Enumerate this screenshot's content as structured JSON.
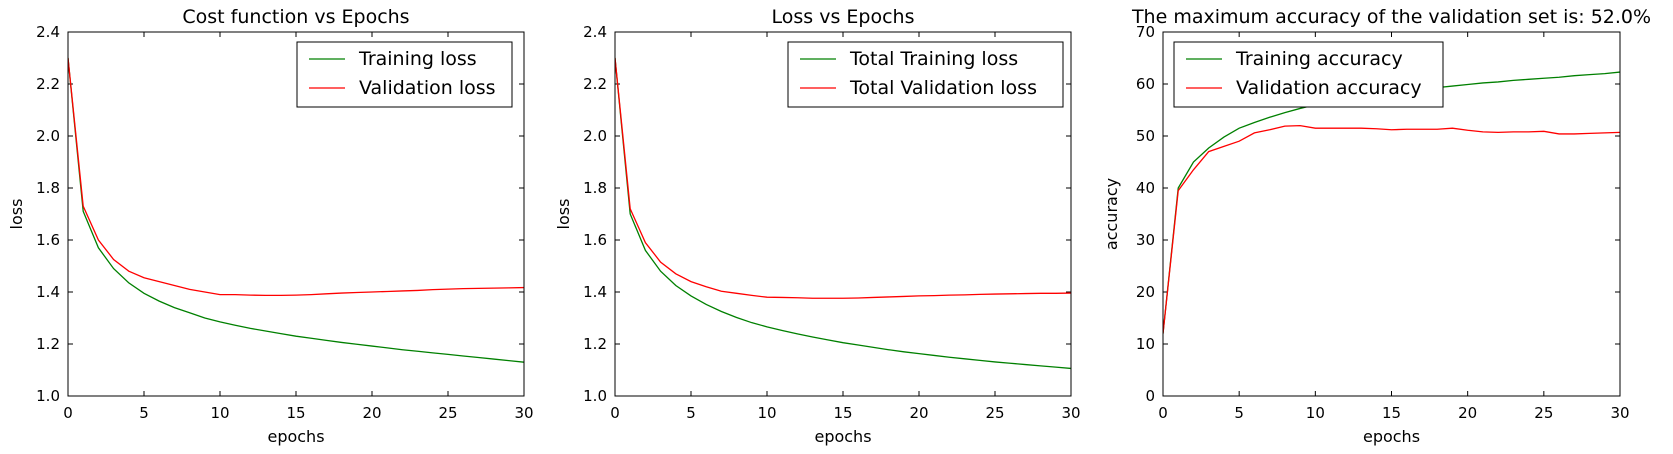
{
  "chart_data": [
    {
      "type": "line",
      "title": "Cost function vs Epochs",
      "xlabel": "epochs",
      "ylabel": "loss",
      "xlim": [
        0,
        30
      ],
      "ylim": [
        1.0,
        2.4
      ],
      "xticks": [
        "0",
        "5",
        "10",
        "15",
        "20",
        "25",
        "30"
      ],
      "yticks": [
        "1.0",
        "1.2",
        "1.4",
        "1.6",
        "1.8",
        "2.0",
        "2.2",
        "2.4"
      ],
      "legend_position": "top-right",
      "x": [
        0,
        1,
        2,
        3,
        4,
        5,
        6,
        7,
        8,
        9,
        10,
        11,
        12,
        13,
        14,
        15,
        16,
        17,
        18,
        19,
        20,
        21,
        22,
        23,
        24,
        25,
        26,
        27,
        28,
        29,
        30
      ],
      "series": [
        {
          "name": "Training loss",
          "color": "#008000",
          "values": [
            2.3,
            1.71,
            1.57,
            1.49,
            1.435,
            1.395,
            1.365,
            1.34,
            1.32,
            1.3,
            1.285,
            1.272,
            1.26,
            1.25,
            1.24,
            1.23,
            1.222,
            1.214,
            1.206,
            1.199,
            1.192,
            1.185,
            1.178,
            1.172,
            1.166,
            1.16,
            1.154,
            1.148,
            1.142,
            1.136,
            1.13
          ]
        },
        {
          "name": "Validation loss",
          "color": "#ff0000",
          "values": [
            2.3,
            1.73,
            1.6,
            1.525,
            1.48,
            1.455,
            1.44,
            1.425,
            1.41,
            1.4,
            1.39,
            1.39,
            1.388,
            1.387,
            1.387,
            1.388,
            1.39,
            1.393,
            1.396,
            1.398,
            1.4,
            1.402,
            1.404,
            1.406,
            1.409,
            1.411,
            1.413,
            1.414,
            1.415,
            1.416,
            1.417
          ]
        }
      ]
    },
    {
      "type": "line",
      "title": "Loss vs Epochs",
      "xlabel": "epochs",
      "ylabel": "loss",
      "xlim": [
        0,
        30
      ],
      "ylim": [
        1.0,
        2.4
      ],
      "xticks": [
        "0",
        "5",
        "10",
        "15",
        "20",
        "25",
        "30"
      ],
      "yticks": [
        "1.0",
        "1.2",
        "1.4",
        "1.6",
        "1.8",
        "2.0",
        "2.2",
        "2.4"
      ],
      "legend_position": "top-right",
      "x": [
        0,
        1,
        2,
        3,
        4,
        5,
        6,
        7,
        8,
        9,
        10,
        11,
        12,
        13,
        14,
        15,
        16,
        17,
        18,
        19,
        20,
        21,
        22,
        23,
        24,
        25,
        26,
        27,
        28,
        29,
        30
      ],
      "series": [
        {
          "name": "Total Training loss",
          "color": "#008000",
          "values": [
            2.3,
            1.7,
            1.56,
            1.48,
            1.425,
            1.385,
            1.352,
            1.325,
            1.302,
            1.282,
            1.266,
            1.252,
            1.239,
            1.227,
            1.216,
            1.205,
            1.196,
            1.187,
            1.178,
            1.17,
            1.163,
            1.156,
            1.149,
            1.143,
            1.137,
            1.131,
            1.126,
            1.121,
            1.116,
            1.111,
            1.106
          ]
        },
        {
          "name": "Total Validation loss",
          "color": "#ff0000",
          "values": [
            2.3,
            1.72,
            1.59,
            1.515,
            1.47,
            1.44,
            1.42,
            1.403,
            1.395,
            1.387,
            1.38,
            1.379,
            1.378,
            1.376,
            1.376,
            1.376,
            1.377,
            1.379,
            1.381,
            1.383,
            1.385,
            1.386,
            1.388,
            1.389,
            1.391,
            1.392,
            1.393,
            1.394,
            1.395,
            1.395,
            1.396
          ]
        }
      ]
    },
    {
      "type": "line",
      "title": "The maximum accuracy of the validation set is: 52.0%",
      "xlabel": "epochs",
      "ylabel": "accuracy",
      "xlim": [
        0,
        30
      ],
      "ylim": [
        0,
        70
      ],
      "xticks": [
        "0",
        "5",
        "10",
        "15",
        "20",
        "25",
        "30"
      ],
      "yticks": [
        "0",
        "10",
        "20",
        "30",
        "40",
        "50",
        "60",
        "70"
      ],
      "legend_position": "top-left",
      "x": [
        0,
        1,
        2,
        3,
        4,
        5,
        6,
        7,
        8,
        9,
        10,
        11,
        12,
        13,
        14,
        15,
        16,
        17,
        18,
        19,
        20,
        21,
        22,
        23,
        24,
        25,
        26,
        27,
        28,
        29,
        30
      ],
      "series": [
        {
          "name": "Training accuracy",
          "color": "#008000",
          "values": [
            12,
            40,
            45,
            47.7,
            49.8,
            51.5,
            52.6,
            53.6,
            54.5,
            55.3,
            56.0,
            56.5,
            57.0,
            57.5,
            57.9,
            58.3,
            58.7,
            59.0,
            59.3,
            59.6,
            59.9,
            60.2,
            60.4,
            60.7,
            60.9,
            61.1,
            61.3,
            61.6,
            61.8,
            62.0,
            62.3
          ]
        },
        {
          "name": "Validation accuracy",
          "color": "#ff0000",
          "values": [
            12,
            39.5,
            43.5,
            47,
            48,
            49,
            50.6,
            51.2,
            51.9,
            52.0,
            51.5,
            51.5,
            51.5,
            51.5,
            51.4,
            51.2,
            51.3,
            51.3,
            51.3,
            51.5,
            51.1,
            50.8,
            50.7,
            50.8,
            50.8,
            50.9,
            50.4,
            50.4,
            50.5,
            50.6,
            50.7
          ]
        }
      ]
    }
  ]
}
